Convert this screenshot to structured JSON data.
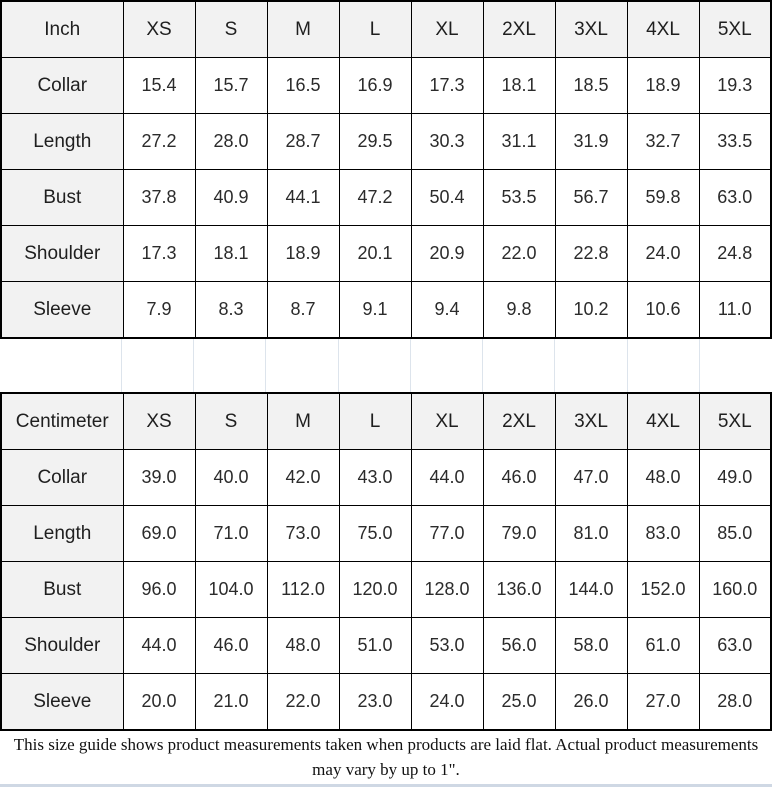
{
  "colors": {
    "table_border": "#000000",
    "header_cell_background": "#f2f2f2",
    "data_cell_background": "#ffffff",
    "gap_line": "#dde4ec",
    "bottom_divider": "#cfd8e4",
    "text": "#1f1f1f"
  },
  "footer_note": "This size guide shows product measurements taken when products are laid flat. Actual product measurements may vary by up to 1\".",
  "chart_data": [
    {
      "type": "table",
      "title": "Inch",
      "columns": [
        "XS",
        "S",
        "M",
        "L",
        "XL",
        "2XL",
        "3XL",
        "4XL",
        "5XL"
      ],
      "rows": [
        {
          "label": "Collar",
          "values": [
            "15.4",
            "15.7",
            "16.5",
            "16.9",
            "17.3",
            "18.1",
            "18.5",
            "18.9",
            "19.3"
          ]
        },
        {
          "label": "Length",
          "values": [
            "27.2",
            "28.0",
            "28.7",
            "29.5",
            "30.3",
            "31.1",
            "31.9",
            "32.7",
            "33.5"
          ]
        },
        {
          "label": "Bust",
          "values": [
            "37.8",
            "40.9",
            "44.1",
            "47.2",
            "50.4",
            "53.5",
            "56.7",
            "59.8",
            "63.0"
          ]
        },
        {
          "label": "Shoulder",
          "values": [
            "17.3",
            "18.1",
            "18.9",
            "20.1",
            "20.9",
            "22.0",
            "22.8",
            "24.0",
            "24.8"
          ]
        },
        {
          "label": "Sleeve",
          "values": [
            "7.9",
            "8.3",
            "8.7",
            "9.1",
            "9.4",
            "9.8",
            "10.2",
            "10.6",
            "11.0"
          ]
        }
      ]
    },
    {
      "type": "table",
      "title": "Centimeter",
      "columns": [
        "XS",
        "S",
        "M",
        "L",
        "XL",
        "2XL",
        "3XL",
        "4XL",
        "5XL"
      ],
      "rows": [
        {
          "label": "Collar",
          "values": [
            "39.0",
            "40.0",
            "42.0",
            "43.0",
            "44.0",
            "46.0",
            "47.0",
            "48.0",
            "49.0"
          ]
        },
        {
          "label": "Length",
          "values": [
            "69.0",
            "71.0",
            "73.0",
            "75.0",
            "77.0",
            "79.0",
            "81.0",
            "83.0",
            "85.0"
          ]
        },
        {
          "label": "Bust",
          "values": [
            "96.0",
            "104.0",
            "112.0",
            "120.0",
            "128.0",
            "136.0",
            "144.0",
            "152.0",
            "160.0"
          ]
        },
        {
          "label": "Shoulder",
          "values": [
            "44.0",
            "46.0",
            "48.0",
            "51.0",
            "53.0",
            "56.0",
            "58.0",
            "61.0",
            "63.0"
          ]
        },
        {
          "label": "Sleeve",
          "values": [
            "20.0",
            "21.0",
            "22.0",
            "23.0",
            "24.0",
            "25.0",
            "26.0",
            "27.0",
            "28.0"
          ]
        }
      ]
    }
  ]
}
